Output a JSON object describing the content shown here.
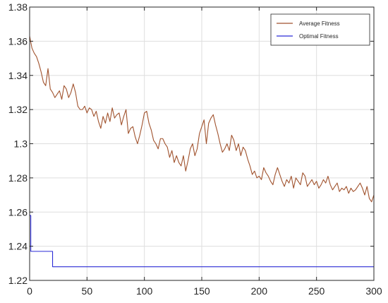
{
  "chart_data": {
    "type": "line",
    "title": "",
    "xlabel": "",
    "ylabel": "",
    "xlim": [
      0,
      300
    ],
    "ylim": [
      1.22,
      1.38
    ],
    "grid": true,
    "legend_position": "top-right",
    "x_ticks": [
      0,
      50,
      100,
      150,
      200,
      250,
      300
    ],
    "x_tick_labels": [
      "0",
      "50",
      "100",
      "150",
      "200",
      "250",
      "300"
    ],
    "y_ticks": [
      1.22,
      1.24,
      1.26,
      1.28,
      1.3,
      1.32,
      1.34,
      1.36,
      1.38
    ],
    "y_tick_labels": [
      "1.22",
      "1.24",
      "1.26",
      "1.28",
      "1.3",
      "1.32",
      "1.34",
      "1.36",
      "1.38"
    ],
    "series": [
      {
        "name": "Average Fitness",
        "color": "#a0522d",
        "x": [
          0,
          2,
          4,
          6,
          8,
          10,
          12,
          14,
          16,
          18,
          20,
          22,
          24,
          26,
          28,
          30,
          32,
          34,
          36,
          38,
          40,
          42,
          44,
          46,
          48,
          50,
          52,
          54,
          56,
          58,
          60,
          62,
          64,
          66,
          68,
          70,
          72,
          74,
          76,
          78,
          80,
          82,
          84,
          86,
          88,
          90,
          92,
          94,
          96,
          98,
          100,
          102,
          104,
          106,
          108,
          110,
          112,
          114,
          116,
          118,
          120,
          122,
          124,
          126,
          128,
          130,
          132,
          134,
          136,
          138,
          140,
          142,
          144,
          146,
          148,
          150,
          152,
          154,
          156,
          158,
          160,
          162,
          164,
          166,
          168,
          170,
          172,
          174,
          176,
          178,
          180,
          182,
          184,
          186,
          188,
          190,
          192,
          194,
          196,
          198,
          200,
          202,
          204,
          206,
          208,
          210,
          212,
          214,
          216,
          218,
          220,
          222,
          224,
          226,
          228,
          230,
          232,
          234,
          236,
          238,
          240,
          242,
          244,
          246,
          248,
          250,
          252,
          254,
          256,
          258,
          260,
          262,
          264,
          266,
          268,
          270,
          272,
          274,
          276,
          278,
          280,
          282,
          284,
          286,
          288,
          290,
          292,
          294,
          296,
          298,
          300
        ],
        "y": [
          1.363,
          1.356,
          1.353,
          1.351,
          1.347,
          1.342,
          1.336,
          1.334,
          1.344,
          1.332,
          1.33,
          1.327,
          1.329,
          1.331,
          1.326,
          1.334,
          1.332,
          1.327,
          1.33,
          1.335,
          1.33,
          1.322,
          1.32,
          1.32,
          1.322,
          1.318,
          1.321,
          1.32,
          1.316,
          1.319,
          1.313,
          1.309,
          1.316,
          1.312,
          1.318,
          1.313,
          1.321,
          1.315,
          1.317,
          1.318,
          1.311,
          1.316,
          1.32,
          1.306,
          1.309,
          1.31,
          1.304,
          1.3,
          1.305,
          1.311,
          1.318,
          1.319,
          1.312,
          1.308,
          1.302,
          1.3,
          1.297,
          1.303,
          1.303,
          1.3,
          1.298,
          1.292,
          1.296,
          1.289,
          1.293,
          1.289,
          1.287,
          1.293,
          1.284,
          1.29,
          1.297,
          1.3,
          1.293,
          1.297,
          1.306,
          1.31,
          1.314,
          1.3,
          1.312,
          1.315,
          1.317,
          1.311,
          1.306,
          1.3,
          1.295,
          1.297,
          1.3,
          1.296,
          1.305,
          1.302,
          1.296,
          1.3,
          1.293,
          1.298,
          1.296,
          1.291,
          1.287,
          1.282,
          1.284,
          1.28,
          1.281,
          1.279,
          1.286,
          1.283,
          1.281,
          1.278,
          1.276,
          1.282,
          1.286,
          1.282,
          1.278,
          1.275,
          1.279,
          1.277,
          1.281,
          1.274,
          1.28,
          1.278,
          1.276,
          1.283,
          1.281,
          1.275,
          1.277,
          1.279,
          1.276,
          1.278,
          1.274,
          1.276,
          1.279,
          1.277,
          1.281,
          1.276,
          1.273,
          1.275,
          1.277,
          1.272,
          1.274,
          1.273,
          1.275,
          1.271,
          1.274,
          1.272,
          1.273,
          1.275,
          1.277,
          1.274,
          1.27,
          1.275,
          1.268,
          1.266,
          1.27
        ]
      },
      {
        "name": "Optimal Fitness",
        "color": "#2b2bd6",
        "x": [
          0,
          1,
          1,
          20,
          20,
          300
        ],
        "y": [
          1.258,
          1.258,
          1.237,
          1.237,
          1.228,
          1.228
        ]
      }
    ]
  }
}
